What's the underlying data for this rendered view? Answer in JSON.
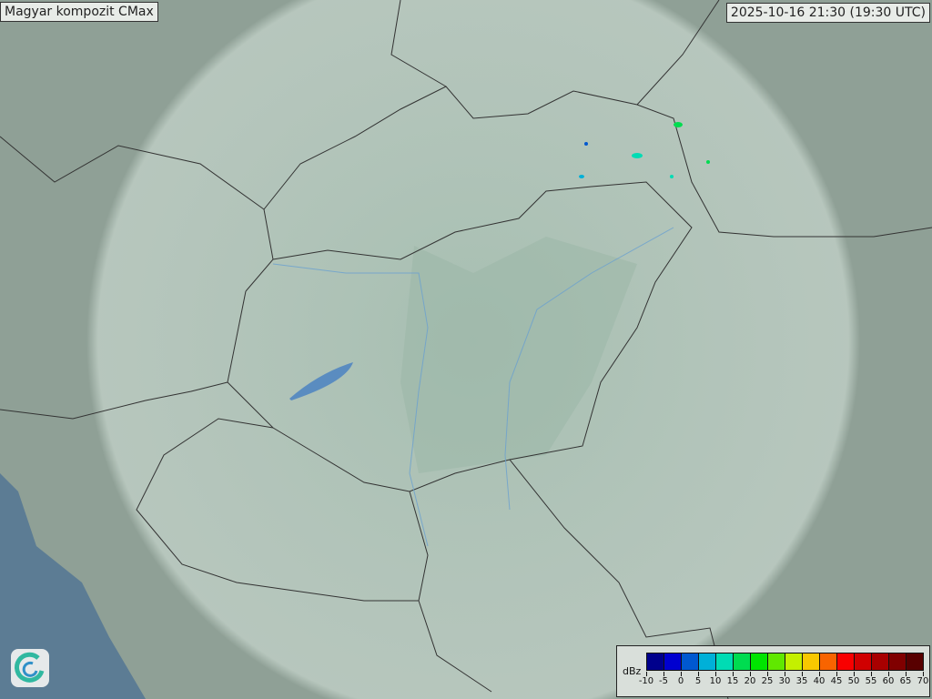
{
  "title": "Magyar kompozit  CMax",
  "timestamp": "2025-10-16 21:30 (19:30 UTC)",
  "logo": "swirl-logo",
  "legend": {
    "unit": "dBz",
    "ticks": [
      "-10",
      "-5",
      "0",
      "5",
      "10",
      "15",
      "20",
      "25",
      "30",
      "35",
      "40",
      "45",
      "50",
      "55",
      "60",
      "65",
      "70"
    ],
    "colors": [
      "#00008c",
      "#0000d0",
      "#0058d0",
      "#00b0d8",
      "#00dcb4",
      "#00dc50",
      "#00e400",
      "#60e800",
      "#c4f000",
      "#f8c800",
      "#f86400",
      "#f80000",
      "#d00000",
      "#a80000",
      "#800000",
      "#580000"
    ]
  },
  "colors": {
    "land": "#8a9d92",
    "coverage": "#b9cbc0",
    "water": "#5c7c94",
    "border": "#333333",
    "river": "#6aa0d0"
  }
}
